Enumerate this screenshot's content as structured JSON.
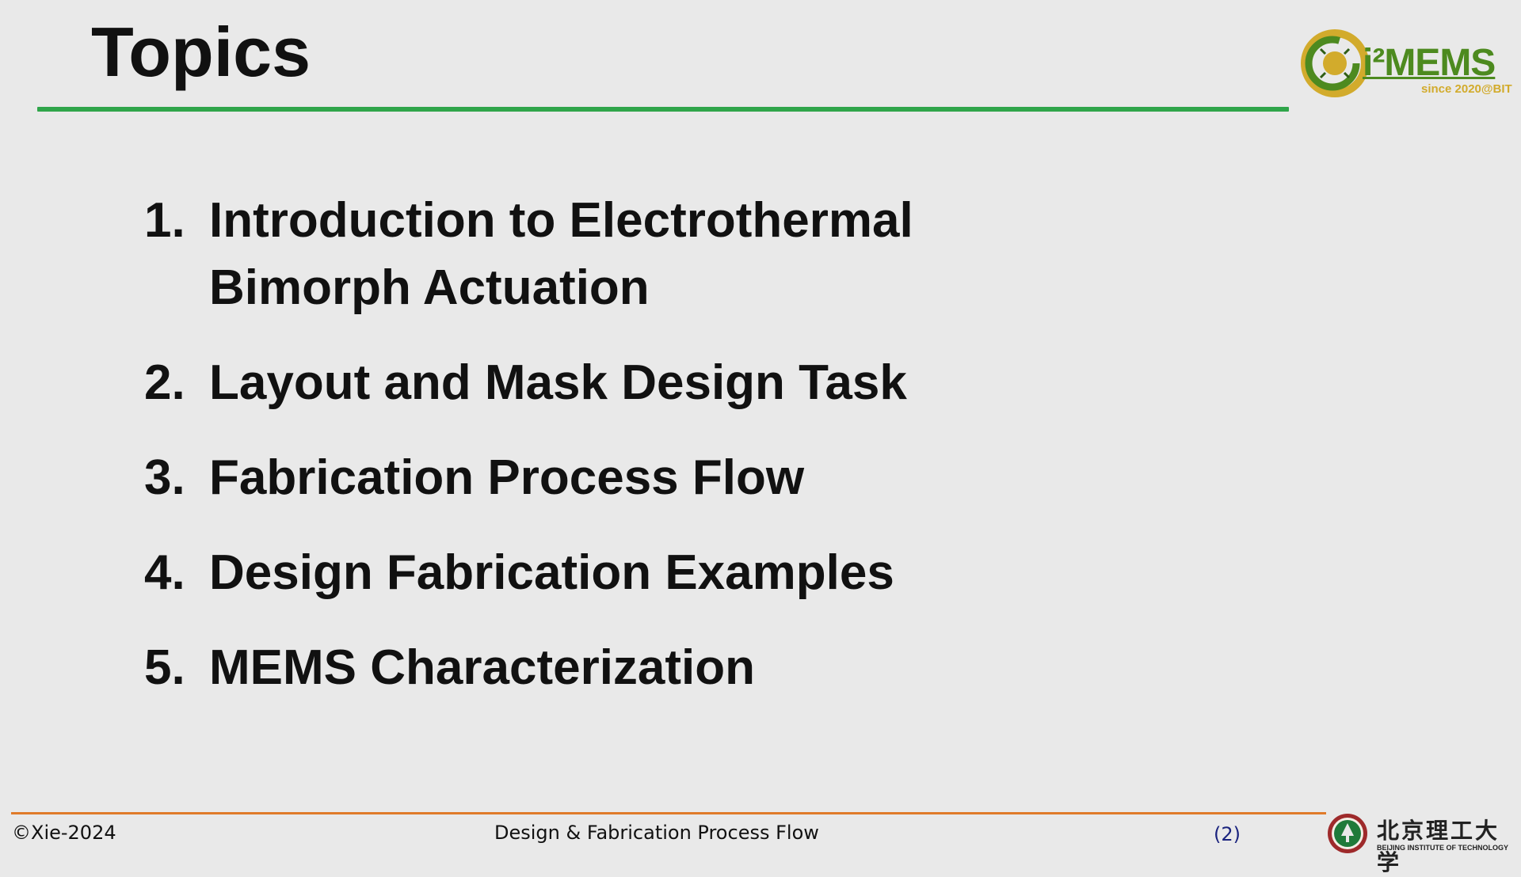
{
  "slide": {
    "title": "Topics",
    "topics": [
      {
        "number": "1.",
        "text": "Introduction to Electrothermal Bimorph Actuation"
      },
      {
        "number": "2.",
        "text": "Layout and Mask Design Task"
      },
      {
        "number": "3.",
        "text": "Fabrication Process Flow"
      },
      {
        "number": "4.",
        "text": "Design Fabrication Examples"
      },
      {
        "number": "5.",
        "text": "MEMS Characterization"
      }
    ]
  },
  "logo": {
    "name": "i²MEMS",
    "tagline": "since 2020@BIT",
    "icon": "i2mems-logo-icon"
  },
  "footer": {
    "copyright": "©Xie-2024",
    "course_title": "Design & Fabrication Process Flow",
    "page_number": "(2)"
  },
  "university": {
    "name_cn": "北京理工大学",
    "name_en": "BEIJING INSTITUTE OF TECHNOLOGY",
    "icon": "university-seal-icon"
  },
  "colors": {
    "title_rule": "#2fa54a",
    "footer_rule": "#e07b2a",
    "logo_green": "#4d8a1f",
    "logo_gold": "#d2ab2c",
    "page_number": "#1a237e"
  }
}
